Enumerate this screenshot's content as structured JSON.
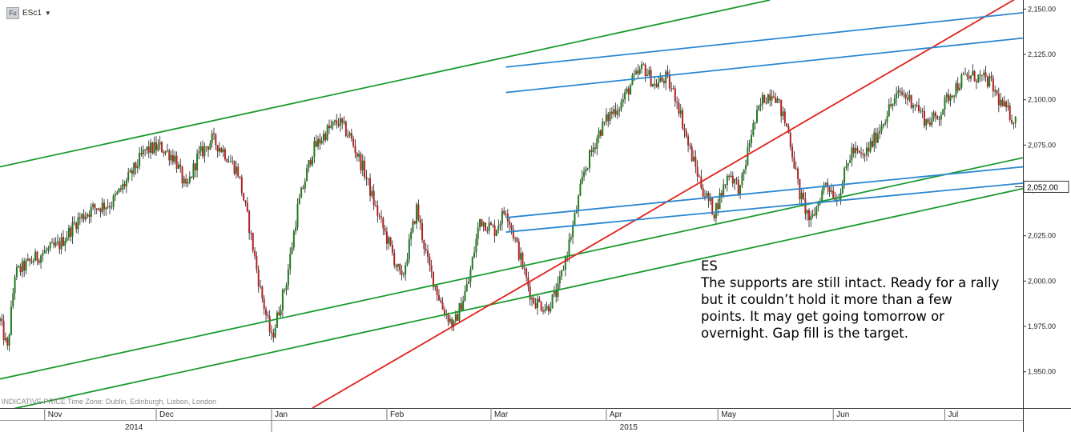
{
  "toolbar": {
    "icon": "Fu",
    "symbol": "ESc1",
    "dropdown_icon": "caret-down-icon"
  },
  "footer_note": "INDICATIVE PRICE   Time Zone: Dublin, Edinburgh, Lisbon, London",
  "annotation": {
    "lines": [
      "ES",
      "The supports are still intact. Ready for a rally",
      "but it couldn’t hold it more than a few",
      "points. It may get going tomorrow or",
      "overnight. Gap fill is the target."
    ]
  },
  "chart_data": {
    "type": "candlestick",
    "title": "",
    "xlabel": "",
    "ylabel": "",
    "ylim": [
      1930,
      2155
    ],
    "y_ticks": [
      "2,150.00",
      "2,125.00",
      "2,100.00",
      "2,075.00",
      "2,050.00",
      "2,025.00",
      "2,000.00",
      "1,975.00",
      "1,950.00"
    ],
    "y_tick_values": [
      2150,
      2125,
      2100,
      2075,
      2050,
      2025,
      2000,
      1975,
      1950
    ],
    "last_price_label": "2,052.00",
    "last_price": 2052,
    "x_range": [
      "2014-10-20",
      "2015-07-22"
    ],
    "month_labels": [
      {
        "label": "Nov",
        "date": "2014-11-01"
      },
      {
        "label": "Dec",
        "date": "2014-12-01"
      },
      {
        "label": "Jan",
        "date": "2015-01-01"
      },
      {
        "label": "Feb",
        "date": "2015-02-01"
      },
      {
        "label": "Mar",
        "date": "2015-03-01"
      },
      {
        "label": "Apr",
        "date": "2015-04-01"
      },
      {
        "label": "May",
        "date": "2015-05-01"
      },
      {
        "label": "Jun",
        "date": "2015-06-01"
      },
      {
        "label": "Jul",
        "date": "2015-07-01"
      }
    ],
    "year_labels": [
      {
        "label": "2014",
        "date": "2014-11-25"
      },
      {
        "label": "2015",
        "date": "2015-04-07"
      }
    ],
    "year_divider": "2015-01-01",
    "grid": false,
    "price_path": [
      {
        "date": "2014-10-20",
        "close": 1978
      },
      {
        "date": "2014-10-22",
        "close": 1962
      },
      {
        "date": "2014-10-24",
        "close": 2004
      },
      {
        "date": "2014-10-29",
        "close": 2012
      },
      {
        "date": "2014-11-01",
        "close": 2016
      },
      {
        "date": "2014-11-05",
        "close": 2020
      },
      {
        "date": "2014-11-10",
        "close": 2034
      },
      {
        "date": "2014-11-14",
        "close": 2040
      },
      {
        "date": "2014-11-19",
        "close": 2043
      },
      {
        "date": "2014-11-24",
        "close": 2058
      },
      {
        "date": "2014-11-28",
        "close": 2072
      },
      {
        "date": "2014-12-02",
        "close": 2074
      },
      {
        "date": "2014-12-06",
        "close": 2068
      },
      {
        "date": "2014-12-09",
        "close": 2050
      },
      {
        "date": "2014-12-12",
        "close": 2068
      },
      {
        "date": "2014-12-16",
        "close": 2078
      },
      {
        "date": "2014-12-19",
        "close": 2072
      },
      {
        "date": "2014-12-23",
        "close": 2060
      },
      {
        "date": "2014-12-26",
        "close": 2030
      },
      {
        "date": "2014-12-29",
        "close": 1995
      },
      {
        "date": "2015-01-01",
        "close": 1968
      },
      {
        "date": "2015-01-05",
        "close": 2000
      },
      {
        "date": "2015-01-08",
        "close": 2040
      },
      {
        "date": "2015-01-12",
        "close": 2072
      },
      {
        "date": "2015-01-16",
        "close": 2083
      },
      {
        "date": "2015-01-19",
        "close": 2088
      },
      {
        "date": "2015-01-22",
        "close": 2080
      },
      {
        "date": "2015-01-26",
        "close": 2060
      },
      {
        "date": "2015-01-29",
        "close": 2040
      },
      {
        "date": "2015-02-02",
        "close": 2018
      },
      {
        "date": "2015-02-05",
        "close": 2000
      },
      {
        "date": "2015-02-09",
        "close": 2040
      },
      {
        "date": "2015-02-12",
        "close": 2010
      },
      {
        "date": "2015-02-16",
        "close": 1985
      },
      {
        "date": "2015-02-19",
        "close": 1975
      },
      {
        "date": "2015-02-23",
        "close": 2000
      },
      {
        "date": "2015-02-26",
        "close": 2034
      },
      {
        "date": "2015-03-02",
        "close": 2028
      },
      {
        "date": "2015-03-05",
        "close": 2040
      },
      {
        "date": "2015-03-09",
        "close": 2012
      },
      {
        "date": "2015-03-12",
        "close": 1990
      },
      {
        "date": "2015-03-16",
        "close": 1985
      },
      {
        "date": "2015-03-19",
        "close": 1995
      },
      {
        "date": "2015-03-23",
        "close": 2030
      },
      {
        "date": "2015-03-26",
        "close": 2060
      },
      {
        "date": "2015-03-30",
        "close": 2082
      },
      {
        "date": "2015-04-02",
        "close": 2092
      },
      {
        "date": "2015-04-05",
        "close": 2098
      },
      {
        "date": "2015-04-08",
        "close": 2110
      },
      {
        "date": "2015-04-11",
        "close": 2118
      },
      {
        "date": "2015-04-14",
        "close": 2108
      },
      {
        "date": "2015-04-17",
        "close": 2112
      },
      {
        "date": "2015-04-20",
        "close": 2100
      },
      {
        "date": "2015-04-23",
        "close": 2075
      },
      {
        "date": "2015-04-27",
        "close": 2050
      },
      {
        "date": "2015-04-30",
        "close": 2038
      },
      {
        "date": "2015-05-04",
        "close": 2060
      },
      {
        "date": "2015-05-07",
        "close": 2050
      },
      {
        "date": "2015-05-10",
        "close": 2082
      },
      {
        "date": "2015-05-13",
        "close": 2100
      },
      {
        "date": "2015-05-16",
        "close": 2105
      },
      {
        "date": "2015-05-20",
        "close": 2082
      },
      {
        "date": "2015-05-23",
        "close": 2048
      },
      {
        "date": "2015-05-26",
        "close": 2032
      },
      {
        "date": "2015-05-30",
        "close": 2055
      },
      {
        "date": "2015-06-02",
        "close": 2045
      },
      {
        "date": "2015-06-06",
        "close": 2072
      },
      {
        "date": "2015-06-09",
        "close": 2068
      },
      {
        "date": "2015-06-12",
        "close": 2078
      },
      {
        "date": "2015-06-16",
        "close": 2095
      },
      {
        "date": "2015-06-19",
        "close": 2104
      },
      {
        "date": "2015-06-23",
        "close": 2098
      },
      {
        "date": "2015-06-26",
        "close": 2088
      },
      {
        "date": "2015-06-29",
        "close": 2090
      },
      {
        "date": "2015-07-02",
        "close": 2102
      },
      {
        "date": "2015-07-06",
        "close": 2112
      },
      {
        "date": "2015-07-09",
        "close": 2113
      },
      {
        "date": "2015-07-13",
        "close": 2110
      },
      {
        "date": "2015-07-16",
        "close": 2098
      },
      {
        "date": "2015-07-20",
        "close": 2088
      }
    ],
    "trendlines": [
      {
        "name": "green-upper",
        "color": "#1a9a2e",
        "from": {
          "date": "2014-10-20",
          "price": 2063
        },
        "to": {
          "date": "2015-05-15",
          "price": 2155
        }
      },
      {
        "name": "green-support-1",
        "color": "#1a9a2e",
        "from": {
          "date": "2014-10-20",
          "price": 1946
        },
        "to": {
          "date": "2015-07-22",
          "price": 2068
        }
      },
      {
        "name": "green-support-2",
        "color": "#1a9a2e",
        "from": {
          "date": "2014-10-20",
          "price": 1928
        },
        "to": {
          "date": "2015-07-22",
          "price": 2051
        }
      },
      {
        "name": "red-trend",
        "color": "#e0241c",
        "from": {
          "date": "2015-01-12",
          "price": 1930
        },
        "to": {
          "date": "2015-07-22",
          "price": 2158
        }
      },
      {
        "name": "blue-upper-1",
        "color": "#2a86d0",
        "from": {
          "date": "2015-03-05",
          "price": 2118
        },
        "to": {
          "date": "2015-07-22",
          "price": 2148
        }
      },
      {
        "name": "blue-upper-2",
        "color": "#2a86d0",
        "from": {
          "date": "2015-03-05",
          "price": 2104
        },
        "to": {
          "date": "2015-07-22",
          "price": 2134
        }
      },
      {
        "name": "blue-lower-1",
        "color": "#2a86d0",
        "from": {
          "date": "2015-03-05",
          "price": 2035
        },
        "to": {
          "date": "2015-07-22",
          "price": 2063
        }
      },
      {
        "name": "blue-lower-2",
        "color": "#2a86d0",
        "from": {
          "date": "2015-03-05",
          "price": 2027
        },
        "to": {
          "date": "2015-07-22",
          "price": 2054
        }
      }
    ],
    "colors": {
      "up": "#1f7a1f",
      "down": "#b22222",
      "last_price_box": "#ffffff",
      "axis": "#333333"
    }
  }
}
